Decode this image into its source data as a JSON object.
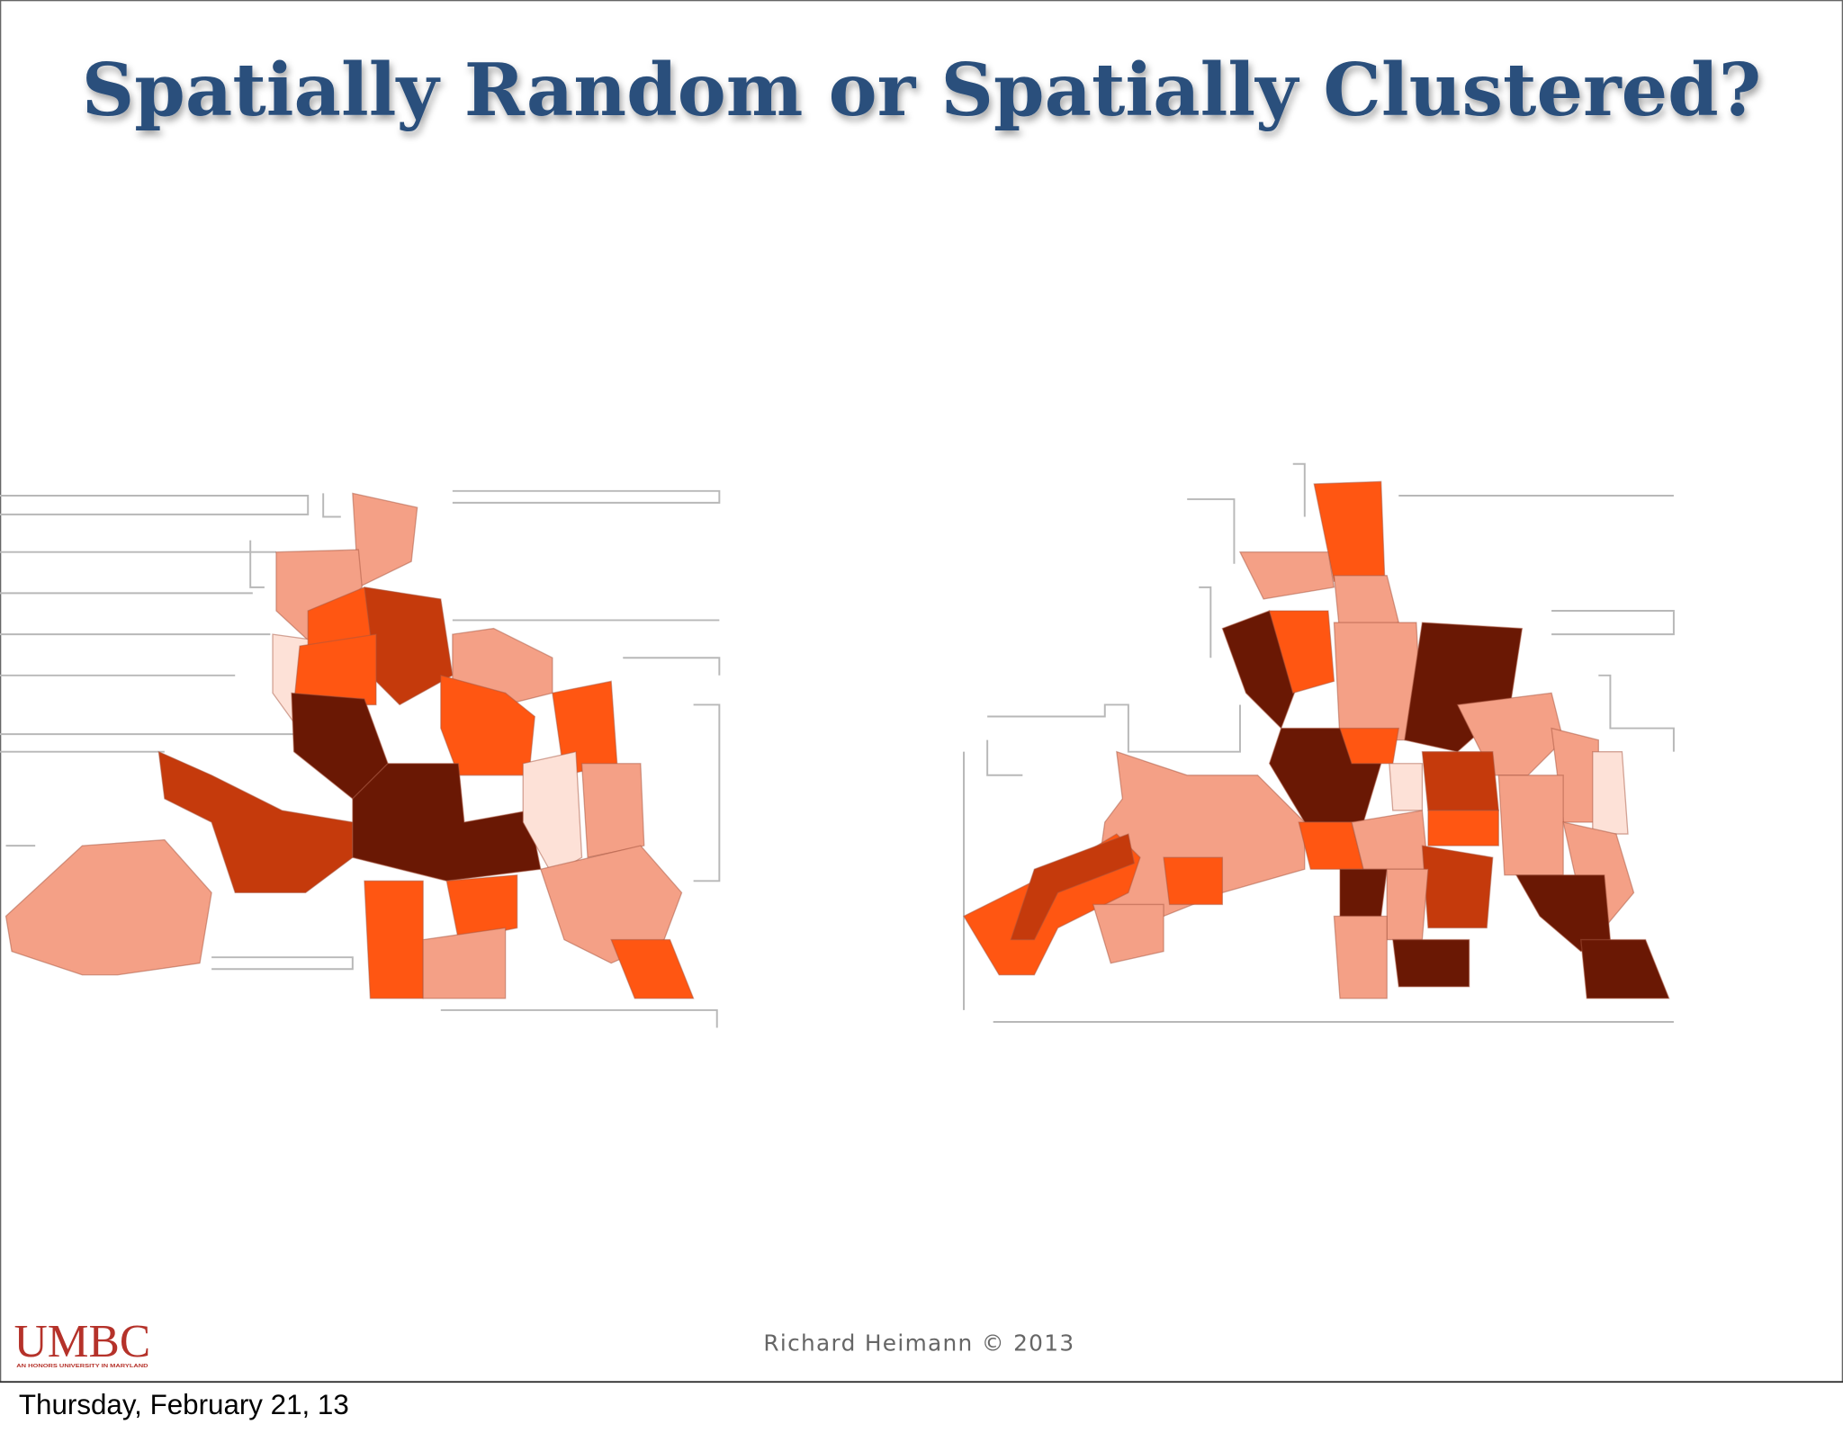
{
  "header": {
    "title": "Spatially Random or Spatially Clustered?"
  },
  "footer": {
    "credit": "Richard Heimann © 2013",
    "logo": "UMBC",
    "logo_subtitle": "AN HONORS UNIVERSITY IN MARYLAND",
    "date": "Thursday, February 21, 13"
  }
}
